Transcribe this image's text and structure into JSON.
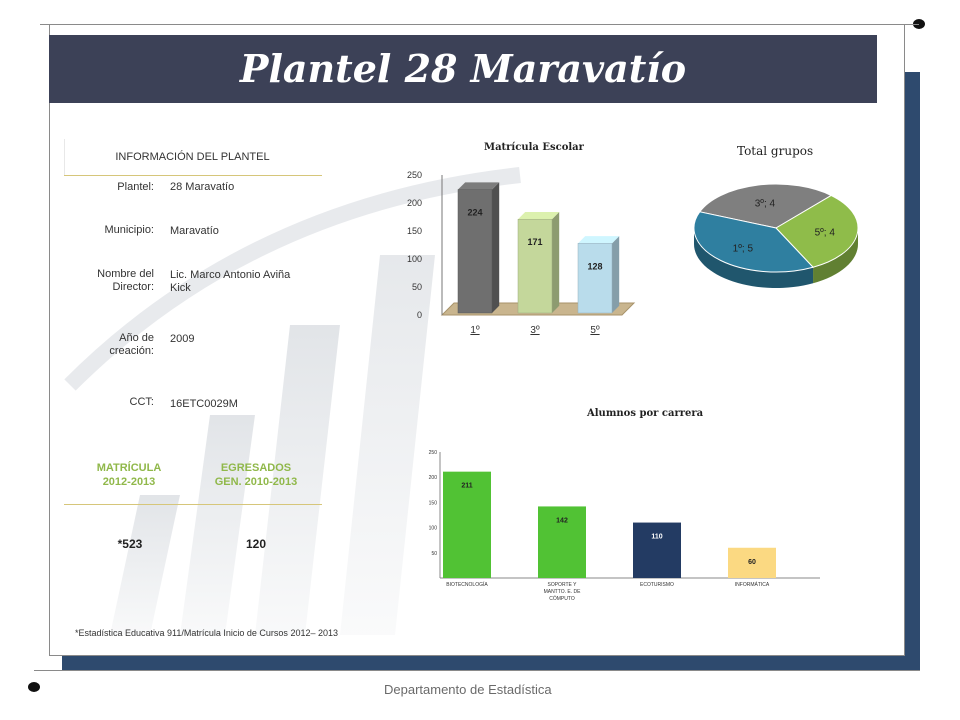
{
  "title": "Plantel 28 Maravatío",
  "info": {
    "heading": "INFORMACIÓN DEL PLANTEL",
    "fields": [
      {
        "label": "Plantel:",
        "value": "28 Maravatío"
      },
      {
        "label": "Municipio:",
        "value": "Maravatío"
      },
      {
        "label_lines": [
          "Nombre del",
          "Director:"
        ],
        "value_lines": [
          "Lic. Marco Antonio Aviña",
          "Kick"
        ]
      },
      {
        "label_lines": [
          "Año de",
          "creación:"
        ],
        "value": "2009"
      },
      {
        "label": "CCT:",
        "value": "16ETC0029M"
      }
    ]
  },
  "stats": {
    "matricula_head": [
      "MATRÍCULA",
      "2012-2013"
    ],
    "egresados_head": [
      "EGRESADOS",
      "GEN. 2010-2013"
    ],
    "matricula_value": "*523",
    "egresados_value": "120"
  },
  "footnote": "*Estadística Educativa 911/Matrícula Inicio de Cursos 2012– 2013",
  "department": "Departamento de Estadística",
  "chart_data": [
    {
      "type": "bar",
      "title": "Matrícula Escolar",
      "categories": [
        "1º",
        "3º",
        "5º"
      ],
      "values": [
        224,
        171,
        128
      ],
      "ylim": [
        0,
        250
      ],
      "yticks": [
        0,
        50,
        100,
        150,
        200,
        250
      ],
      "colors": [
        "#6f6f6f",
        "#c4d79b",
        "#b9dceb"
      ],
      "data_labels": true
    },
    {
      "type": "pie",
      "title": "Total grupos",
      "slices": [
        {
          "label": "3º; 4",
          "value": 4,
          "color": "#7f7f7f"
        },
        {
          "label": "5º; 4",
          "value": 4,
          "color": "#8fbc4a"
        },
        {
          "label": "1º; 5",
          "value": 5,
          "color": "#2f7fa0"
        }
      ]
    },
    {
      "type": "bar",
      "title": "Alumnos por carrera",
      "categories": [
        [
          "BIOTECNOLOGÍA"
        ],
        [
          "SOPORTE Y",
          "MANTTO. E. DE",
          "CÓMPUTO"
        ],
        [
          "ECOTURISMO"
        ],
        [
          "INFORMÁTICA"
        ]
      ],
      "values": [
        211,
        142,
        110,
        60
      ],
      "ylim": [
        0,
        250
      ],
      "yticks": [
        50,
        100,
        150,
        200,
        250
      ],
      "colors": [
        "#51c234",
        "#51c234",
        "#233b63",
        "#fbd982"
      ],
      "data_labels": true
    }
  ]
}
